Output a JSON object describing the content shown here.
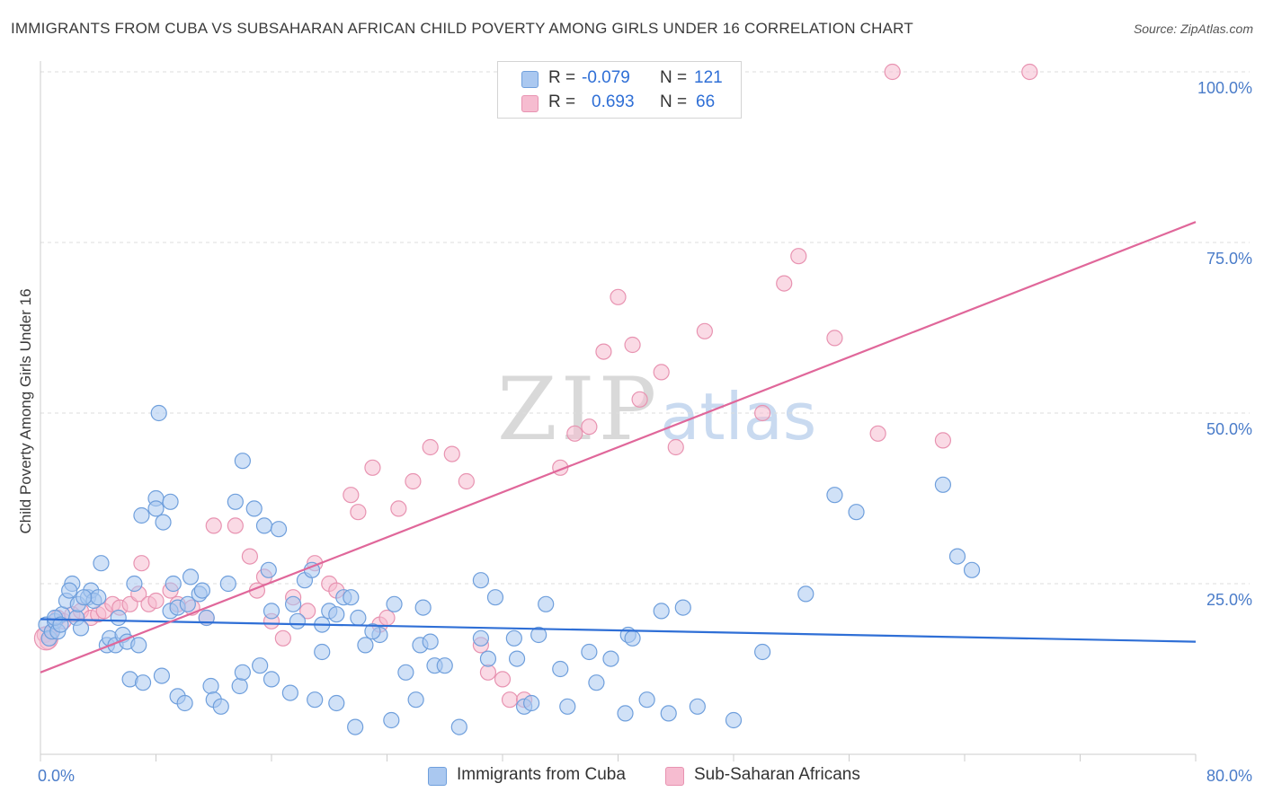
{
  "title": "IMMIGRANTS FROM CUBA VS SUBSAHARAN AFRICAN CHILD POVERTY AMONG GIRLS UNDER 16 CORRELATION CHART",
  "source": "Source: ZipAtlas.com",
  "watermark": {
    "zip": "ZIP",
    "atlas": "atlas"
  },
  "colors": {
    "blue_fill": "#aac8f0",
    "blue_stroke": "#6f9fdc",
    "blue_line": "#2f6fd6",
    "pink_fill": "#f6bcd0",
    "pink_stroke": "#e893b1",
    "pink_line": "#e0679a",
    "tick_text": "#4a7cc9",
    "grid": "#dddddd"
  },
  "legend_top": {
    "rows": [
      {
        "r_label": "R =",
        "r_value": "-0.079",
        "n_label": "N =",
        "n_value": "121"
      },
      {
        "r_label": "R =",
        "r_value": "0.693",
        "n_label": "N =",
        "n_value": "66"
      }
    ]
  },
  "chart_data": {
    "type": "scatter",
    "title": "IMMIGRANTS FROM CUBA VS SUBSAHARAN AFRICAN CHILD POVERTY AMONG GIRLS UNDER 16 CORRELATION CHART",
    "xlabel": "",
    "ylabel": "Child Poverty Among Girls Under 16",
    "xlim": [
      0,
      80
    ],
    "ylim": [
      0,
      100
    ],
    "x_tick_labels": [
      "0.0%",
      "80.0%"
    ],
    "y_ticks": [
      25,
      50,
      75,
      100
    ],
    "y_tick_labels": [
      "25.0%",
      "50.0%",
      "75.0%",
      "100.0%"
    ],
    "grid": true,
    "legend_position": "bottom",
    "series": [
      {
        "name": "Immigrants from Cuba",
        "color": "blue",
        "trend": {
          "x0": 0,
          "y0": 19.8,
          "x1": 80,
          "y1": 16.5
        },
        "points": [
          [
            0.4,
            19
          ],
          [
            0.6,
            17
          ],
          [
            0.8,
            18
          ],
          [
            1.0,
            19.5
          ],
          [
            1.2,
            18
          ],
          [
            1.5,
            20.5
          ],
          [
            1.8,
            22.5
          ],
          [
            2.2,
            25
          ],
          [
            2.5,
            20
          ],
          [
            2.6,
            22
          ],
          [
            2.8,
            18.5
          ],
          [
            3.3,
            23
          ],
          [
            3.5,
            24
          ],
          [
            3.7,
            22.5
          ],
          [
            4.0,
            23
          ],
          [
            4.2,
            28
          ],
          [
            4.6,
            16
          ],
          [
            4.8,
            17
          ],
          [
            5.2,
            16
          ],
          [
            5.4,
            20
          ],
          [
            5.7,
            17.5
          ],
          [
            6.0,
            16.5
          ],
          [
            6.5,
            25
          ],
          [
            6.8,
            16
          ],
          [
            7.0,
            35
          ],
          [
            8.0,
            37.5
          ],
          [
            8.5,
            34
          ],
          [
            9.0,
            21
          ],
          [
            9.2,
            25
          ],
          [
            9.5,
            21.5
          ],
          [
            10.2,
            22
          ],
          [
            10.4,
            26
          ],
          [
            11.0,
            23.5
          ],
          [
            11.2,
            24
          ],
          [
            11.5,
            20
          ],
          [
            13.0,
            25
          ],
          [
            14.0,
            43
          ],
          [
            14.8,
            36
          ],
          [
            15.5,
            33.5
          ],
          [
            15.8,
            27
          ],
          [
            16.0,
            21
          ],
          [
            17.5,
            22
          ],
          [
            17.8,
            19.5
          ],
          [
            18.3,
            25.5
          ],
          [
            18.8,
            27
          ],
          [
            20.0,
            21
          ],
          [
            20.5,
            20.5
          ],
          [
            21.0,
            23
          ],
          [
            21.5,
            23
          ],
          [
            8.2,
            50
          ],
          [
            1.0,
            20
          ],
          [
            1.4,
            19
          ],
          [
            2.0,
            24
          ],
          [
            3.0,
            23
          ],
          [
            6.2,
            11
          ],
          [
            7.1,
            10.5
          ],
          [
            8.4,
            11.5
          ],
          [
            9.5,
            8.5
          ],
          [
            10.0,
            7.5
          ],
          [
            11.8,
            10
          ],
          [
            12.0,
            8
          ],
          [
            13.8,
            10
          ],
          [
            14.0,
            12
          ],
          [
            15.2,
            13
          ],
          [
            16.0,
            11
          ],
          [
            17.3,
            9
          ],
          [
            19.0,
            8
          ],
          [
            19.5,
            15
          ],
          [
            20.5,
            7.5
          ],
          [
            21.8,
            4
          ],
          [
            22.5,
            16
          ],
          [
            23.5,
            17.5
          ],
          [
            24.3,
            5
          ],
          [
            24.5,
            22
          ],
          [
            25.3,
            12
          ],
          [
            26.0,
            8
          ],
          [
            26.3,
            16
          ],
          [
            26.5,
            21.5
          ],
          [
            27.0,
            16.5
          ],
          [
            27.3,
            13
          ],
          [
            28.0,
            13
          ],
          [
            29.0,
            4
          ],
          [
            30.5,
            25.5
          ],
          [
            30.5,
            17
          ],
          [
            31.0,
            14
          ],
          [
            31.5,
            23
          ],
          [
            32.8,
            17
          ],
          [
            33.0,
            14
          ],
          [
            33.5,
            7
          ],
          [
            34.0,
            7.5
          ],
          [
            34.5,
            17.5
          ],
          [
            35.0,
            22
          ],
          [
            36.0,
            12.5
          ],
          [
            36.5,
            7
          ],
          [
            38.0,
            15
          ],
          [
            38.5,
            10.5
          ],
          [
            39.5,
            14
          ],
          [
            40.5,
            6
          ],
          [
            40.7,
            17.5
          ],
          [
            41.0,
            17
          ],
          [
            42.0,
            8
          ],
          [
            43.0,
            21
          ],
          [
            43.5,
            6
          ],
          [
            44.5,
            21.5
          ],
          [
            45.5,
            7
          ],
          [
            48.0,
            5
          ],
          [
            50.0,
            15
          ],
          [
            53.0,
            23.5
          ],
          [
            62.5,
            39.5
          ],
          [
            63.5,
            29
          ],
          [
            64.5,
            27
          ],
          [
            56.5,
            35.5
          ],
          [
            55.0,
            38
          ],
          [
            9.0,
            37
          ],
          [
            8.0,
            36
          ],
          [
            13.5,
            37
          ],
          [
            16.5,
            33
          ],
          [
            19.5,
            19
          ],
          [
            22.0,
            20
          ],
          [
            23.0,
            18
          ],
          [
            12.5,
            7
          ]
        ]
      },
      {
        "name": "Sub-Saharan Africans",
        "color": "pink",
        "trend": {
          "x0": 0,
          "y0": 12,
          "x1": 80,
          "y1": 78
        },
        "points": [
          [
            0.3,
            17.5
          ],
          [
            0.5,
            16.5
          ],
          [
            0.8,
            18
          ],
          [
            1.2,
            20
          ],
          [
            1.6,
            19.5
          ],
          [
            2.2,
            20.5
          ],
          [
            2.8,
            21
          ],
          [
            3.5,
            20
          ],
          [
            4.0,
            20.5
          ],
          [
            4.4,
            21
          ],
          [
            5.0,
            22
          ],
          [
            5.5,
            21.5
          ],
          [
            6.2,
            22
          ],
          [
            6.8,
            23.5
          ],
          [
            7.0,
            28
          ],
          [
            7.5,
            22
          ],
          [
            8.0,
            22.5
          ],
          [
            9.0,
            24
          ],
          [
            9.5,
            22
          ],
          [
            10.5,
            21.5
          ],
          [
            11.5,
            20
          ],
          [
            12.0,
            33.5
          ],
          [
            13.5,
            33.5
          ],
          [
            14.5,
            29
          ],
          [
            15.0,
            24
          ],
          [
            15.5,
            26
          ],
          [
            16.0,
            19.5
          ],
          [
            16.8,
            17
          ],
          [
            17.5,
            23
          ],
          [
            18.5,
            21
          ],
          [
            19.0,
            28
          ],
          [
            20.0,
            25
          ],
          [
            20.5,
            24
          ],
          [
            21.5,
            38
          ],
          [
            22.0,
            35.5
          ],
          [
            23.0,
            42
          ],
          [
            23.5,
            19
          ],
          [
            24.0,
            20
          ],
          [
            24.8,
            36
          ],
          [
            25.8,
            40
          ],
          [
            27.0,
            45
          ],
          [
            28.5,
            44
          ],
          [
            29.5,
            40
          ],
          [
            30.5,
            16
          ],
          [
            31.0,
            12
          ],
          [
            32.0,
            11
          ],
          [
            32.5,
            8
          ],
          [
            33.5,
            8
          ],
          [
            36.0,
            42
          ],
          [
            37.0,
            47
          ],
          [
            38.0,
            48
          ],
          [
            39.0,
            59
          ],
          [
            40.0,
            67
          ],
          [
            41.0,
            60
          ],
          [
            41.5,
            52
          ],
          [
            43.0,
            56
          ],
          [
            44.0,
            45
          ],
          [
            46.0,
            62
          ],
          [
            50.0,
            50
          ],
          [
            51.5,
            69
          ],
          [
            52.5,
            73
          ],
          [
            55.0,
            61
          ],
          [
            58.0,
            47
          ],
          [
            59.0,
            100
          ],
          [
            62.5,
            46
          ],
          [
            68.5,
            100
          ]
        ]
      }
    ]
  },
  "axis": {
    "y_label": "Child Poverty Among Girls Under 16",
    "x_left": "0.0%",
    "x_right": "80.0%"
  },
  "bottom_legend": {
    "items": [
      {
        "label": "Immigrants from Cuba"
      },
      {
        "label": "Sub-Saharan Africans"
      }
    ]
  }
}
